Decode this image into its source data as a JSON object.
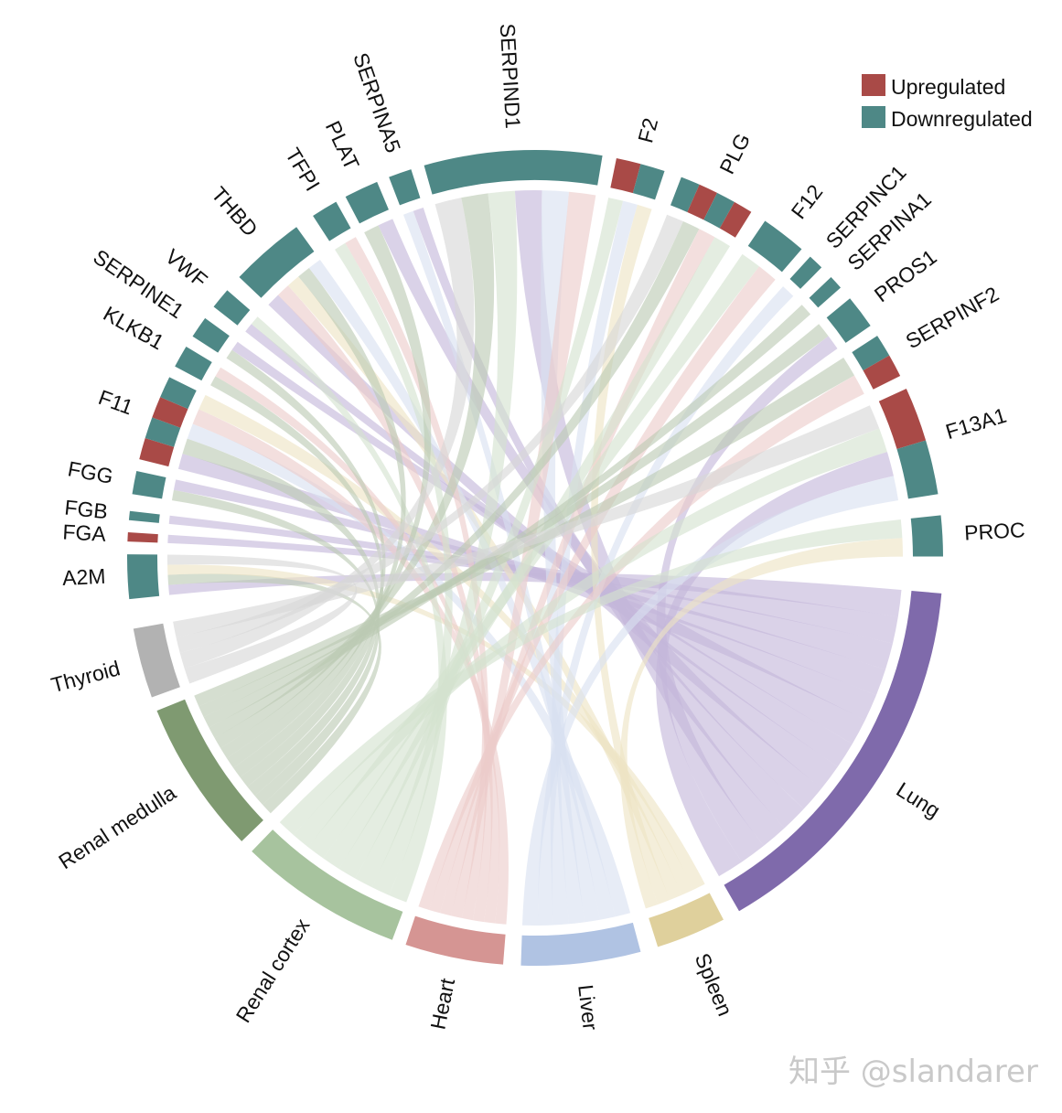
{
  "chart_data": {
    "type": "chord",
    "title": "",
    "legend": {
      "placement": "top-right",
      "items": [
        {
          "key": "up",
          "label": "Upregulated",
          "color": "#a94a47"
        },
        {
          "key": "down",
          "label": "Downregulated",
          "color": "#4e8886"
        }
      ]
    },
    "genes": [
      {
        "name": "A2M",
        "links": [
          "Lung",
          "Renal medulla",
          "Spleen",
          "Thyroid"
        ],
        "status": [
          "down"
        ]
      },
      {
        "name": "FGA",
        "links": [
          "Lung"
        ],
        "status": [
          "up"
        ]
      },
      {
        "name": "FGB",
        "links": [
          "Lung"
        ],
        "status": [
          "down"
        ]
      },
      {
        "name": "FGG",
        "links": [
          "Renal medulla",
          "Lung"
        ],
        "status": [
          "down"
        ]
      },
      {
        "name": "F11",
        "links": [
          "Lung",
          "Renal medulla",
          "Liver",
          "Heart",
          "Spleen"
        ],
        "status": [
          "up",
          "down",
          "up",
          "down"
        ]
      },
      {
        "name": "KLKB1",
        "links": [
          "Renal medulla",
          "Heart"
        ],
        "status": [
          "down"
        ]
      },
      {
        "name": "SERPINE1",
        "links": [
          "Renal medulla",
          "Lung"
        ],
        "status": [
          "down"
        ]
      },
      {
        "name": "VWF",
        "links": [
          "Lung",
          "Renal cortex"
        ],
        "status": [
          "down"
        ]
      },
      {
        "name": "THBD",
        "links": [
          "Lung",
          "Heart",
          "Spleen",
          "Renal medulla",
          "Liver"
        ],
        "status": [
          "down"
        ]
      },
      {
        "name": "TFPI",
        "links": [
          "Renal cortex",
          "Heart"
        ],
        "status": [
          "down"
        ]
      },
      {
        "name": "PLAT",
        "links": [
          "Renal medulla",
          "Lung"
        ],
        "status": [
          "down"
        ]
      },
      {
        "name": "SERPINA5",
        "links": [
          "Liver",
          "Lung"
        ],
        "status": [
          "down"
        ]
      },
      {
        "name": "SERPIND1",
        "links": [
          "Thyroid",
          "Renal medulla",
          "Renal cortex",
          "Lung",
          "Liver",
          "Heart"
        ],
        "status": [
          "down"
        ]
      },
      {
        "name": "F2",
        "links": [
          "Renal cortex",
          "Liver",
          "Spleen"
        ],
        "status": [
          "up",
          "down"
        ]
      },
      {
        "name": "PLG",
        "links": [
          "Thyroid",
          "Renal medulla",
          "Heart",
          "Renal cortex"
        ],
        "status": [
          "down",
          "up",
          "down",
          "up"
        ]
      },
      {
        "name": "F12",
        "links": [
          "Renal cortex",
          "Heart"
        ],
        "status": [
          "down"
        ]
      },
      {
        "name": "SERPINC1",
        "links": [
          "Liver"
        ],
        "status": [
          "down"
        ]
      },
      {
        "name": "SERPINA1",
        "links": [
          "Renal medulla"
        ],
        "status": [
          "down"
        ]
      },
      {
        "name": "PROS1",
        "links": [
          "Renal medulla",
          "Lung"
        ],
        "status": [
          "down"
        ]
      },
      {
        "name": "SERPINF2",
        "links": [
          "Renal medulla",
          "Heart"
        ],
        "status": [
          "down",
          "up"
        ]
      },
      {
        "name": "F13A1",
        "links": [
          "Thyroid",
          "Renal cortex",
          "Lung",
          "Liver"
        ],
        "status": [
          "up",
          "down"
        ]
      },
      {
        "name": "PROC",
        "links": [
          "Renal cortex",
          "Spleen"
        ],
        "status": [
          "down"
        ]
      }
    ],
    "tissues": [
      {
        "name": "Lung",
        "color": "#7f6aab",
        "ribbon": "#c3b6da"
      },
      {
        "name": "Spleen",
        "color": "#dfd09c",
        "ribbon": "#ede4c4"
      },
      {
        "name": "Liver",
        "color": "#b0c3e3",
        "ribbon": "#d8e1f1"
      },
      {
        "name": "Heart",
        "color": "#d59593",
        "ribbon": "#eccbca"
      },
      {
        "name": "Renal cortex",
        "color": "#a7c39e",
        "ribbon": "#d4e2cf"
      },
      {
        "name": "Renal medulla",
        "color": "#7f9a71",
        "ribbon": "#bcc9b3"
      },
      {
        "name": "Thyroid",
        "color": "#b2b2b2",
        "ribbon": "#d6d6d6"
      }
    ]
  },
  "watermark": "知乎 @slandarer"
}
